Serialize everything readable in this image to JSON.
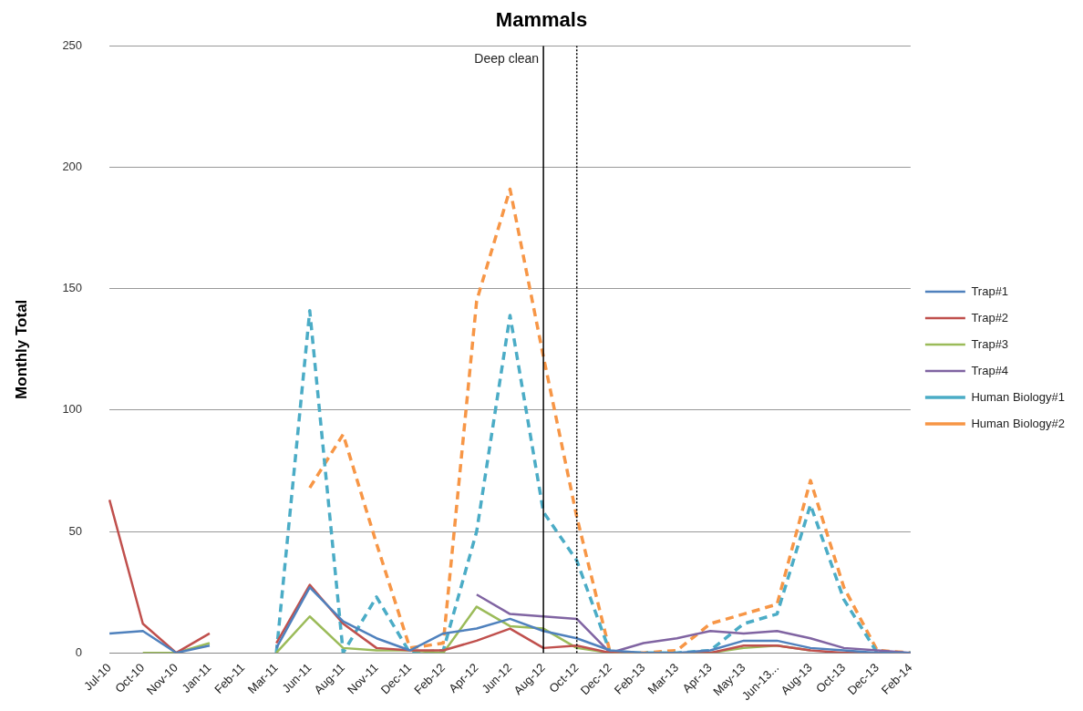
{
  "chart_data": {
    "type": "line",
    "title": "Mammals",
    "ylabel": "Monthly Total",
    "categories": [
      "Jul-10",
      "Oct-10",
      "Nov-10",
      "Jan-11",
      "Feb-11",
      "Mar-11",
      "Jun-11",
      "Aug-11",
      "Nov-11",
      "Dec-11",
      "Feb-12",
      "Apr-12",
      "Jun-12",
      "Aug-12",
      "Oct-12",
      "Dec-12",
      "Feb-13",
      "Mar-13",
      "Apr-13",
      "May-13",
      "Jun-13...",
      "Aug-13",
      "Oct-13",
      "Dec-13",
      "Feb-14"
    ],
    "series": [
      {
        "name": "Trap#1",
        "color": "#4f81bd",
        "line_style": "solid",
        "values": [
          8,
          9,
          0,
          3,
          null,
          2,
          27,
          13,
          6,
          1,
          8,
          10,
          14,
          9,
          6,
          1,
          0,
          0,
          1,
          5,
          5,
          2,
          1,
          0,
          0
        ]
      },
      {
        "name": "Trap#2",
        "color": "#c0504d",
        "line_style": "solid",
        "values": [
          63,
          12,
          0,
          8,
          null,
          4,
          28,
          12,
          2,
          1,
          1,
          5,
          10,
          2,
          3,
          0,
          0,
          0,
          0,
          3,
          3,
          1,
          0,
          0,
          0
        ]
      },
      {
        "name": "Trap#3",
        "color": "#9bbb59",
        "line_style": "solid",
        "values": [
          null,
          0,
          0,
          4,
          null,
          0,
          15,
          2,
          1,
          1,
          0,
          19,
          11,
          10,
          2,
          0,
          0,
          0,
          0,
          2,
          3,
          1,
          null,
          null,
          null
        ]
      },
      {
        "name": "Trap#4",
        "color": "#8064a2",
        "line_style": "solid",
        "values": [
          null,
          null,
          null,
          null,
          null,
          null,
          null,
          null,
          null,
          null,
          null,
          24,
          16,
          15,
          14,
          0,
          4,
          6,
          9,
          8,
          9,
          6,
          2,
          1,
          0
        ]
      },
      {
        "name": "Human Biology#1",
        "color": "#4bacc6",
        "line_style": "dashed",
        "values": [
          null,
          null,
          null,
          null,
          null,
          0,
          141,
          0,
          23,
          0,
          1,
          50,
          139,
          58,
          38,
          0,
          0,
          0,
          1,
          12,
          16,
          61,
          22,
          0,
          0
        ]
      },
      {
        "name": "Human Biology#2",
        "color": "#f79646",
        "line_style": "dashed",
        "values": [
          null,
          null,
          null,
          null,
          null,
          null,
          68,
          90,
          45,
          2,
          4,
          145,
          191,
          122,
          56,
          0,
          0,
          1,
          12,
          16,
          20,
          71,
          27,
          1,
          0
        ]
      }
    ],
    "ylim": [
      0,
      250
    ],
    "yticks": [
      0,
      50,
      100,
      150,
      200,
      250
    ],
    "grid": "y",
    "legend": "right",
    "marker": "none",
    "ref_lines": [
      {
        "axis": "x",
        "value": "Oct-12",
        "color": "#000000",
        "line_style": "dotted"
      },
      {
        "axis": "x",
        "value": "Aug-12",
        "label": "Deep clean",
        "color": "#000000",
        "line_style": "solid"
      }
    ]
  }
}
